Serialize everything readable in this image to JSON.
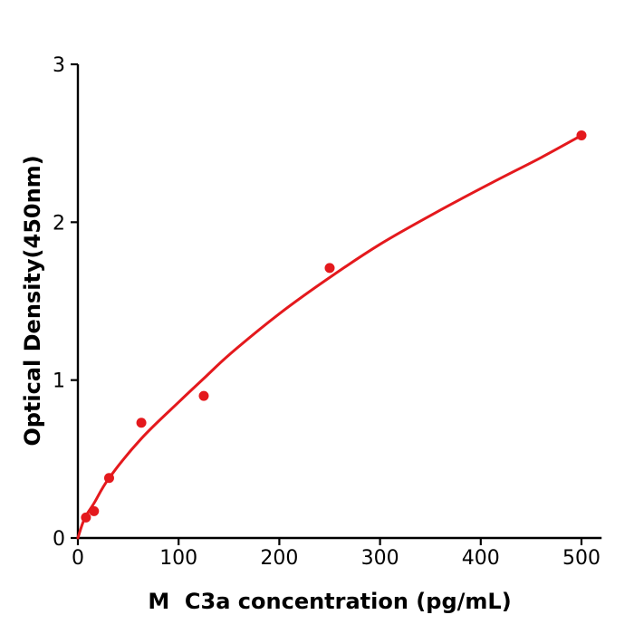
{
  "figure": {
    "background_color": "#ffffff",
    "axis_color": "#000000",
    "accent_color": "#e4191d"
  },
  "chart_data": {
    "type": "scatter",
    "title": "",
    "xlabel": "M  C3a concentration (pg/mL)",
    "ylabel": "Optical Density(450nm)",
    "xlim": [
      0,
      520
    ],
    "ylim": [
      0,
      3
    ],
    "x_ticks": [
      0,
      100,
      200,
      300,
      400,
      500
    ],
    "y_ticks": [
      0,
      1,
      2,
      3
    ],
    "grid": false,
    "legend_position": "none",
    "series": [
      {
        "name": "standard-points",
        "type": "scatter",
        "color": "#e4191d",
        "marker": "circle",
        "x": [
          8,
          16,
          31,
          63,
          125,
          250,
          500
        ],
        "y": [
          0.13,
          0.17,
          0.38,
          0.73,
          0.9,
          1.71,
          2.55
        ]
      },
      {
        "name": "fitted-curve",
        "type": "line",
        "color": "#e4191d",
        "x": [
          0,
          4,
          8,
          16,
          31,
          63,
          100,
          125,
          152,
          200,
          250,
          300,
          355,
          411,
          460,
          500
        ],
        "y": [
          0.0,
          0.08,
          0.14,
          0.22,
          0.38,
          0.63,
          0.86,
          1.01,
          1.17,
          1.42,
          1.65,
          1.86,
          2.06,
          2.25,
          2.41,
          2.55
        ]
      }
    ]
  }
}
